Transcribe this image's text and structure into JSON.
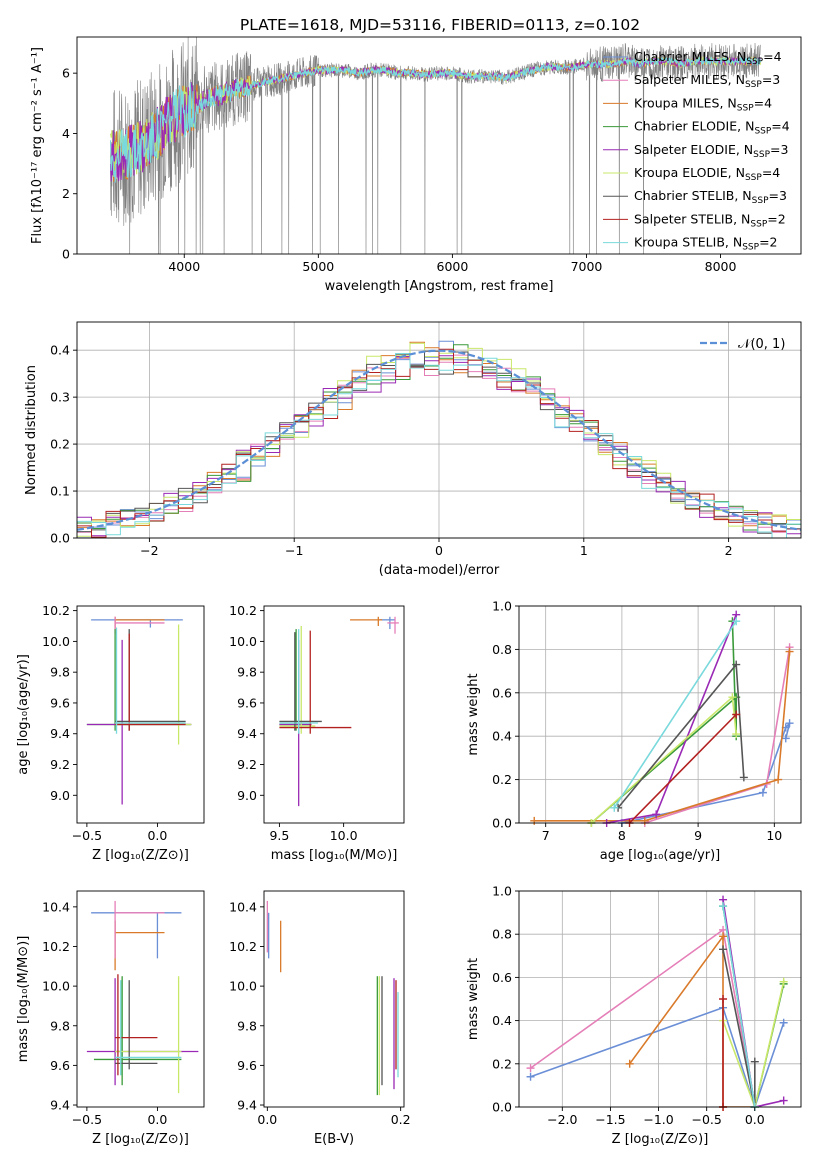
{
  "figure": {
    "title": "PLATE=1618, MJD=53116, FIBERID=0113, z=0.102"
  },
  "colors": {
    "chabrier_miles": "#6b8fd6",
    "salpeter_miles": "#e57fb8",
    "kroupa_miles": "#d97a2a",
    "chabrier_elodie": "#3a9a3a",
    "salpeter_elodie": "#9a2ab5",
    "kroupa_elodie": "#c9e86a",
    "chabrier_stelib": "#555555",
    "salpeter_stelib": "#b22020",
    "kroupa_stelib": "#79d9dc",
    "data": "#808080",
    "normal": "#5b8fd6"
  },
  "legend_models": [
    {
      "key": "chabrier_miles",
      "text": "Chabrier MILES, N",
      "nssp": "4"
    },
    {
      "key": "salpeter_miles",
      "text": "Salpeter MILES, N",
      "nssp": "3"
    },
    {
      "key": "kroupa_miles",
      "text": "Kroupa MILES, N",
      "nssp": "4"
    },
    {
      "key": "chabrier_elodie",
      "text": "Chabrier ELODIE, N",
      "nssp": "4"
    },
    {
      "key": "salpeter_elodie",
      "text": "Salpeter ELODIE, N",
      "nssp": "3"
    },
    {
      "key": "kroupa_elodie",
      "text": "Kroupa ELODIE, N",
      "nssp": "4"
    },
    {
      "key": "chabrier_stelib",
      "text": "Chabrier STELIB, N",
      "nssp": "3"
    },
    {
      "key": "salpeter_stelib",
      "text": "Salpeter STELIB, N",
      "nssp": "2"
    },
    {
      "key": "kroupa_stelib",
      "text": "Kroupa STELIB, N",
      "nssp": "2"
    }
  ],
  "nssp_sub": "SSP",
  "chart_data": [
    {
      "id": "spectrum",
      "type": "line",
      "xlabel": "wavelength [Angstrom, rest frame]",
      "ylabel": "Flux [fλ10⁻¹⁷ erg cm⁻² s⁻¹ A⁻¹]",
      "xlim": [
        3200,
        8600
      ],
      "ylim": [
        0,
        7.2
      ],
      "xticks": [
        4000,
        5000,
        6000,
        7000,
        8000
      ],
      "yticks": [
        0,
        2,
        4,
        6
      ],
      "x": [
        3450,
        3500,
        3600,
        3700,
        3800,
        3900,
        4000,
        4100,
        4200,
        4300,
        4400,
        4500,
        4600,
        4700,
        4800,
        4900,
        5000,
        5100,
        5200,
        5300,
        5400,
        5500,
        5600,
        5700,
        5800,
        5900,
        6000,
        6100,
        6200,
        6300,
        6400,
        6500,
        6600,
        6700,
        6800,
        6900,
        7000,
        7100,
        7200,
        7300,
        7400,
        7500,
        7600,
        7700,
        7800,
        7900,
        8000,
        8100,
        8200,
        8300
      ],
      "y": [
        3.3,
        3.2,
        3.4,
        3.6,
        4.0,
        4.5,
        4.8,
        5.0,
        5.2,
        5.3,
        5.5,
        5.6,
        5.7,
        5.8,
        5.9,
        6.0,
        6.1,
        6.1,
        6.1,
        6.0,
        6.1,
        6.1,
        6.0,
        6.0,
        5.95,
        6.0,
        6.0,
        5.9,
        5.9,
        5.9,
        5.85,
        6.0,
        6.1,
        6.2,
        6.2,
        6.2,
        6.3,
        6.3,
        6.3,
        6.4,
        6.3,
        6.4,
        6.4,
        6.3,
        6.4,
        6.4,
        6.4,
        6.4,
        6.4,
        6.4
      ],
      "grid": false,
      "legend": "right"
    },
    {
      "id": "residuals",
      "type": "step",
      "xlabel": "(data-model)/error",
      "ylabel": "Normed distribution",
      "xlim": [
        -2.5,
        2.5
      ],
      "ylim": [
        0,
        0.46
      ],
      "xticks": [
        -2,
        -1,
        0,
        1,
        2
      ],
      "yticks": [
        0.0,
        0.1,
        0.2,
        0.3,
        0.4
      ],
      "legend_label": "𝒩(0, 1)",
      "grid": true,
      "legend": "top-right"
    },
    {
      "id": "z_age",
      "type": "errorbar",
      "xlabel": "Z [log₁₀(Z/Z⊙)]",
      "ylabel": "age  [log₁₀(age/yr)]",
      "xlim": [
        -0.57,
        0.33
      ],
      "ylim": [
        8.82,
        10.23
      ],
      "xticks": [
        -0.5,
        0.0
      ],
      "yticks": [
        9.0,
        9.2,
        9.4,
        9.6,
        9.8,
        10.0,
        10.2
      ],
      "points": [
        {
          "m": "chabrier_miles",
          "x": -0.05,
          "y": 10.14,
          "ex": [
            -0.47,
            0.18
          ],
          "ey": [
            10.09,
            10.14
          ]
        },
        {
          "m": "kroupa_miles",
          "x": -0.3,
          "y": 10.14,
          "ex": [
            -0.3,
            0.05
          ],
          "ey": [
            10.08,
            10.16
          ]
        },
        {
          "m": "salpeter_miles",
          "x": -0.3,
          "y": 10.12,
          "ex": [
            -0.3,
            0.05
          ],
          "ey": [
            10.05,
            10.16
          ]
        },
        {
          "m": "chabrier_elodie",
          "x": -0.3,
          "y": 9.46,
          "ex": [
            -0.5,
            0.24
          ],
          "ey": [
            9.42,
            10.08
          ]
        },
        {
          "m": "salpeter_elodie",
          "x": -0.25,
          "y": 9.46,
          "ex": [
            -0.5,
            0.24
          ],
          "ey": [
            8.94,
            10.01
          ]
        },
        {
          "m": "kroupa_elodie",
          "x": 0.15,
          "y": 9.46,
          "ex": [
            -0.3,
            0.24
          ],
          "ey": [
            9.33,
            10.11
          ]
        },
        {
          "m": "chabrier_stelib",
          "x": -0.2,
          "y": 9.48,
          "ex": [
            -0.3,
            0.2
          ],
          "ey": [
            9.42,
            10.08
          ]
        },
        {
          "m": "salpeter_stelib",
          "x": -0.2,
          "y": 9.46,
          "ex": [
            -0.3,
            0.2
          ],
          "ey": [
            9.42,
            10.05
          ]
        },
        {
          "m": "kroupa_stelib",
          "x": -0.29,
          "y": 9.47,
          "ex": [
            -0.3,
            0.2
          ],
          "ey": [
            9.4,
            10.09
          ]
        }
      ]
    },
    {
      "id": "mass_age",
      "type": "errorbar",
      "xlabel": "mass [log₁₀(M/M⊙)]",
      "ylabel": "",
      "xlim": [
        9.38,
        10.47
      ],
      "ylim": [
        8.82,
        10.23
      ],
      "xticks": [
        9.5,
        10.0
      ],
      "yticks": [
        9.0,
        9.2,
        9.4,
        9.6,
        9.8,
        10.0,
        10.2
      ],
      "points": [
        {
          "m": "chabrier_miles",
          "x": 10.36,
          "y": 10.14,
          "ex": [
            10.28,
            10.4
          ],
          "ey": [
            10.08,
            10.16
          ]
        },
        {
          "m": "kroupa_miles",
          "x": 10.27,
          "y": 10.14,
          "ex": [
            10.05,
            10.3
          ],
          "ey": [
            10.1,
            10.16
          ]
        },
        {
          "m": "salpeter_miles",
          "x": 10.4,
          "y": 10.12,
          "ex": [
            10.34,
            10.43
          ],
          "ey": [
            10.05,
            10.16
          ]
        },
        {
          "m": "chabrier_elodie",
          "x": 9.63,
          "y": 9.46,
          "ex": [
            9.5,
            9.75
          ],
          "ey": [
            9.42,
            10.08
          ]
        },
        {
          "m": "salpeter_elodie",
          "x": 9.65,
          "y": 9.46,
          "ex": [
            9.5,
            9.75
          ],
          "ey": [
            8.93,
            10.01
          ]
        },
        {
          "m": "kroupa_elodie",
          "x": 9.67,
          "y": 9.45,
          "ex": [
            9.5,
            9.78
          ],
          "ey": [
            9.4,
            10.1
          ]
        },
        {
          "m": "chabrier_stelib",
          "x": 9.62,
          "y": 9.48,
          "ex": [
            9.5,
            9.83
          ],
          "ey": [
            9.42,
            10.06
          ]
        },
        {
          "m": "salpeter_stelib",
          "x": 9.74,
          "y": 9.44,
          "ex": [
            9.5,
            10.06
          ],
          "ey": [
            9.4,
            10.07
          ]
        },
        {
          "m": "kroupa_stelib",
          "x": 9.65,
          "y": 9.47,
          "ex": [
            9.5,
            9.8
          ],
          "ey": [
            9.4,
            10.08
          ]
        }
      ]
    },
    {
      "id": "age_weight",
      "type": "line",
      "xlabel": "age  [log₁₀(age/yr)]",
      "ylabel": "mass weight",
      "xlim": [
        6.65,
        10.35
      ],
      "ylim": [
        0,
        1.0
      ],
      "xticks": [
        7,
        8,
        9,
        10
      ],
      "yticks": [
        0.0,
        0.2,
        0.4,
        0.6,
        0.8,
        1.0
      ],
      "series": [
        {
          "m": "chabrier_miles",
          "x": [
            8.0,
            9.85,
            10.15,
            10.2,
            10.15
          ],
          "y": [
            0.0,
            0.14,
            0.44,
            0.46,
            0.39
          ]
        },
        {
          "m": "salpeter_miles",
          "x": [
            8.3,
            9.9,
            10.2
          ],
          "y": [
            0.0,
            0.18,
            0.81
          ]
        },
        {
          "m": "kroupa_miles",
          "x": [
            6.85,
            8.3,
            10.05,
            10.2
          ],
          "y": [
            0.01,
            0.01,
            0.2,
            0.79
          ]
        },
        {
          "m": "chabrier_elodie",
          "x": [
            7.6,
            9.5,
            9.5,
            9.45
          ],
          "y": [
            0.0,
            0.58,
            0.4,
            0.93
          ]
        },
        {
          "m": "salpeter_elodie",
          "x": [
            7.8,
            8.45,
            9.5
          ],
          "y": [
            0.0,
            0.04,
            0.96
          ]
        },
        {
          "m": "kroupa_elodie",
          "x": [
            7.6,
            9.45,
            9.5
          ],
          "y": [
            0.0,
            0.58,
            0.41
          ]
        },
        {
          "m": "chabrier_stelib",
          "x": [
            7.95,
            9.5,
            9.6
          ],
          "y": [
            0.07,
            0.73,
            0.21
          ]
        },
        {
          "m": "salpeter_stelib",
          "x": [
            8.1,
            9.5
          ],
          "y": [
            0.0,
            0.5
          ]
        },
        {
          "m": "kroupa_stelib",
          "x": [
            7.9,
            9.5
          ],
          "y": [
            0.07,
            0.93
          ]
        }
      ],
      "grid": true
    },
    {
      "id": "z_mass",
      "type": "errorbar",
      "xlabel": "Z [log₁₀(Z/Z⊙)]",
      "ylabel": "mass [log₁₀(M/M⊙)]",
      "xlim": [
        -0.57,
        0.33
      ],
      "ylim": [
        9.39,
        10.48
      ],
      "xticks": [
        -0.5,
        0.0
      ],
      "yticks": [
        9.4,
        9.6,
        9.8,
        10.0,
        10.2,
        10.4
      ],
      "points": [
        {
          "m": "chabrier_miles",
          "x": 0.0,
          "y": 10.37,
          "ex": [
            -0.47,
            0.17
          ],
          "ey": [
            10.14,
            10.37
          ]
        },
        {
          "m": "kroupa_miles",
          "x": -0.3,
          "y": 10.27,
          "ex": [
            -0.3,
            0.05
          ],
          "ey": [
            10.08,
            10.33
          ]
        },
        {
          "m": "salpeter_miles",
          "x": -0.3,
          "y": 10.37,
          "ex": [
            -0.3,
            0.05
          ],
          "ey": [
            10.14,
            10.43
          ]
        },
        {
          "m": "chabrier_elodie",
          "x": -0.25,
          "y": 9.63,
          "ex": [
            -0.45,
            0.17
          ],
          "ey": [
            9.5,
            10.05
          ]
        },
        {
          "m": "salpeter_elodie",
          "x": -0.3,
          "y": 9.67,
          "ex": [
            -0.5,
            0.29
          ],
          "ey": [
            9.5,
            10.04
          ]
        },
        {
          "m": "kroupa_elodie",
          "x": 0.15,
          "y": 9.67,
          "ex": [
            -0.3,
            0.17
          ],
          "ey": [
            9.46,
            10.05
          ]
        },
        {
          "m": "chabrier_stelib",
          "x": -0.2,
          "y": 9.61,
          "ex": [
            -0.3,
            0.0
          ],
          "ey": [
            9.58,
            10.03
          ]
        },
        {
          "m": "salpeter_stelib",
          "x": -0.28,
          "y": 9.74,
          "ex": [
            -0.3,
            0.0
          ],
          "ey": [
            9.55,
            10.06
          ]
        },
        {
          "m": "kroupa_stelib",
          "x": -0.26,
          "y": 9.64,
          "ex": [
            -0.3,
            0.17
          ],
          "ey": [
            9.55,
            10.03
          ]
        }
      ]
    },
    {
      "id": "ebv_mass",
      "type": "errorbar",
      "xlabel": "E(B-V)",
      "ylabel": "",
      "xlim": [
        -0.005,
        0.205
      ],
      "ylim": [
        9.39,
        10.48
      ],
      "xticks": [
        0.0,
        0.2
      ],
      "yticks": [
        9.4,
        9.6,
        9.8,
        10.0,
        10.2,
        10.4
      ],
      "points": [
        {
          "m": "chabrier_miles",
          "x": 0.002,
          "y": 10.3,
          "ey": [
            10.14,
            10.37
          ]
        },
        {
          "m": "salpeter_miles",
          "x": 0.0,
          "y": 10.3,
          "ey": [
            10.17,
            10.43
          ]
        },
        {
          "m": "kroupa_miles",
          "x": 0.02,
          "y": 10.2,
          "ey": [
            10.07,
            10.33
          ]
        },
        {
          "m": "chabrier_elodie",
          "x": 0.165,
          "y": 9.75,
          "ey": [
            9.45,
            10.05
          ]
        },
        {
          "m": "salpeter_elodie",
          "x": 0.19,
          "y": 9.75,
          "ey": [
            9.48,
            10.04
          ]
        },
        {
          "m": "kroupa_elodie",
          "x": 0.168,
          "y": 9.75,
          "ey": [
            9.45,
            10.05
          ]
        },
        {
          "m": "chabrier_stelib",
          "x": 0.172,
          "y": 9.78,
          "ey": [
            9.5,
            10.05
          ]
        },
        {
          "m": "salpeter_stelib",
          "x": 0.193,
          "y": 9.8,
          "ey": [
            9.58,
            10.03
          ]
        },
        {
          "m": "kroupa_stelib",
          "x": 0.196,
          "y": 9.75,
          "ey": [
            9.54,
            9.97
          ]
        }
      ]
    },
    {
      "id": "z_weight",
      "type": "line",
      "xlabel": "Z [log₁₀(Z/Z⊙)]",
      "ylabel": "mass weight",
      "xlim": [
        -2.45,
        0.48
      ],
      "ylim": [
        0,
        1.0
      ],
      "xticks": [
        -2.0,
        -1.5,
        -1.0,
        -0.5,
        0.0
      ],
      "yticks": [
        0.0,
        0.2,
        0.4,
        0.6,
        0.8,
        1.0
      ],
      "series": [
        {
          "m": "chabrier_miles",
          "x": [
            -2.33,
            -0.33,
            0.0,
            0.3
          ],
          "y": [
            0.14,
            0.46,
            0.0,
            0.39
          ]
        },
        {
          "m": "salpeter_miles",
          "x": [
            -2.33,
            -0.33,
            0.0
          ],
          "y": [
            0.18,
            0.82,
            0.0
          ]
        },
        {
          "m": "kroupa_miles",
          "x": [
            -1.3,
            -0.33,
            -0.33,
            0.0
          ],
          "y": [
            0.2,
            0.79,
            0.0,
            0.0
          ]
        },
        {
          "m": "chabrier_elodie",
          "x": [
            -0.33,
            0.0,
            0.3
          ],
          "y": [
            0.93,
            0.0,
            0.57
          ]
        },
        {
          "m": "salpeter_elodie",
          "x": [
            -0.33,
            0.0,
            0.3
          ],
          "y": [
            0.96,
            0.0,
            0.03
          ]
        },
        {
          "m": "kroupa_elodie",
          "x": [
            -0.33,
            0.0,
            0.3
          ],
          "y": [
            0.4,
            0.0,
            0.58
          ]
        },
        {
          "m": "chabrier_stelib",
          "x": [
            -0.33,
            0.0,
            0.0
          ],
          "y": [
            0.73,
            0.0,
            0.21
          ]
        },
        {
          "m": "salpeter_stelib",
          "x": [
            -0.33,
            -0.33
          ],
          "y": [
            0.5,
            0.0
          ]
        },
        {
          "m": "kroupa_stelib",
          "x": [
            -0.33,
            0.0
          ],
          "y": [
            0.93,
            0.0
          ]
        }
      ],
      "grid": true
    }
  ]
}
